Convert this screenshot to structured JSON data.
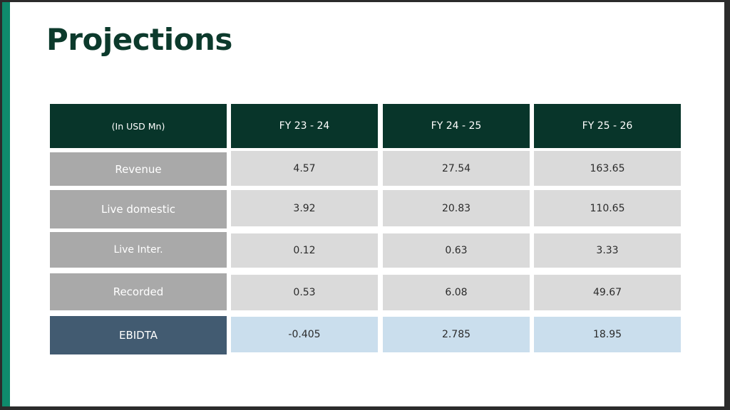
{
  "title": "Projections",
  "table": {
    "header": {
      "corner": "(In USD Mn)",
      "columns": [
        "FY 23 - 24",
        "FY 24 - 25",
        "FY 25 - 26"
      ]
    },
    "rows": [
      {
        "label": "Revenue",
        "values": [
          "4.57",
          "27.54",
          "163.65"
        ]
      },
      {
        "label": "Live domestic",
        "values": [
          "3.92",
          "20.83",
          "110.65"
        ]
      },
      {
        "label": "Live Inter.",
        "values": [
          "0.12",
          "0.63",
          "3.33"
        ]
      },
      {
        "label": "Recorded",
        "values": [
          "0.53",
          "6.08",
          "49.67"
        ]
      },
      {
        "label": "EBIDTA",
        "values": [
          "-0.405",
          "2.785",
          "18.95"
        ]
      }
    ]
  },
  "colors": {
    "title": "#0c3a2c",
    "accent_bar": "#0f8a6c",
    "header_fill": "#08352a",
    "row_label_fill": "#a9a9a9",
    "value_fill": "#dadada",
    "ebitda_label_fill": "#425b71",
    "ebitda_value_fill": "#cadeed"
  }
}
